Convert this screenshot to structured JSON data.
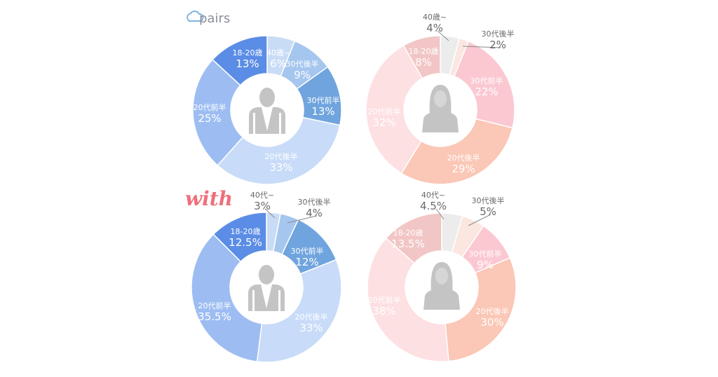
{
  "brands": {
    "pairs": {
      "name": "pairs",
      "accent": "#7fb3e0"
    },
    "with": {
      "name": "with",
      "accent": "#ef6f7a"
    }
  },
  "chart_data": [
    {
      "type": "pie",
      "service": "pairs",
      "gender": "male",
      "slices": [
        {
          "name": "40歳~",
          "value": 6,
          "pct": "6%",
          "color": "#c9dcf6"
        },
        {
          "name": "30代後半",
          "value": 9,
          "pct": "9%",
          "color": "#a5c6ee"
        },
        {
          "name": "30代前半",
          "value": 13,
          "pct": "13%",
          "color": "#6fa4de"
        },
        {
          "name": "20代後半",
          "value": 33,
          "pct": "33%",
          "color": "#c8dbf8"
        },
        {
          "name": "20代前半",
          "value": 25,
          "pct": "25%",
          "color": "#9dbdf2"
        },
        {
          "name": "18-20歳",
          "value": 13,
          "pct": "13%",
          "color": "#5b8de6"
        }
      ]
    },
    {
      "type": "pie",
      "service": "pairs",
      "gender": "female",
      "slices": [
        {
          "name": "40歳~",
          "value": 4,
          "pct": "4%",
          "color": "#ececec"
        },
        {
          "name": "30代後半",
          "value": 2,
          "pct": "2%",
          "color": "#fbe6e0"
        },
        {
          "name": "30代前半",
          "value": 22,
          "pct": "22%",
          "color": "#fbc8d2"
        },
        {
          "name": "20代後半",
          "value": 29,
          "pct": "29%",
          "color": "#fbc7b6"
        },
        {
          "name": "20代前半",
          "value": 32,
          "pct": "32%",
          "color": "#fde0e2"
        },
        {
          "name": "18-20歳",
          "value": 8,
          "pct": "8%",
          "color": "#f2c6c6"
        }
      ]
    },
    {
      "type": "pie",
      "service": "with",
      "gender": "male",
      "slices": [
        {
          "name": "40代~",
          "value": 3,
          "pct": "3%",
          "color": "#c9dcf6"
        },
        {
          "name": "30代後半",
          "value": 4,
          "pct": "4%",
          "color": "#a5c6ee"
        },
        {
          "name": "30代前半",
          "value": 12,
          "pct": "12%",
          "color": "#6fa4de"
        },
        {
          "name": "20代後半",
          "value": 33,
          "pct": "33%",
          "color": "#c8dbf8"
        },
        {
          "name": "20代前半",
          "value": 35.5,
          "pct": "35.5%",
          "color": "#9dbdf2"
        },
        {
          "name": "18-20歳",
          "value": 12.5,
          "pct": "12.5%",
          "color": "#5b8de6"
        }
      ]
    },
    {
      "type": "pie",
      "service": "with",
      "gender": "female",
      "slices": [
        {
          "name": "40代~",
          "value": 4.5,
          "pct": "4.5%",
          "color": "#ececec"
        },
        {
          "name": "30代後半",
          "value": 5,
          "pct": "5%",
          "color": "#fbe6e0"
        },
        {
          "name": "30代前半",
          "value": 9,
          "pct": "9%",
          "color": "#fbc8d2"
        },
        {
          "name": "20代後半",
          "value": 30,
          "pct": "30%",
          "color": "#fbc7b6"
        },
        {
          "name": "20代前半",
          "value": 38,
          "pct": "38%",
          "color": "#fde0e2"
        },
        {
          "name": "18-20歳",
          "value": 13.5,
          "pct": "13.5%",
          "color": "#f2c6c6"
        }
      ]
    }
  ]
}
